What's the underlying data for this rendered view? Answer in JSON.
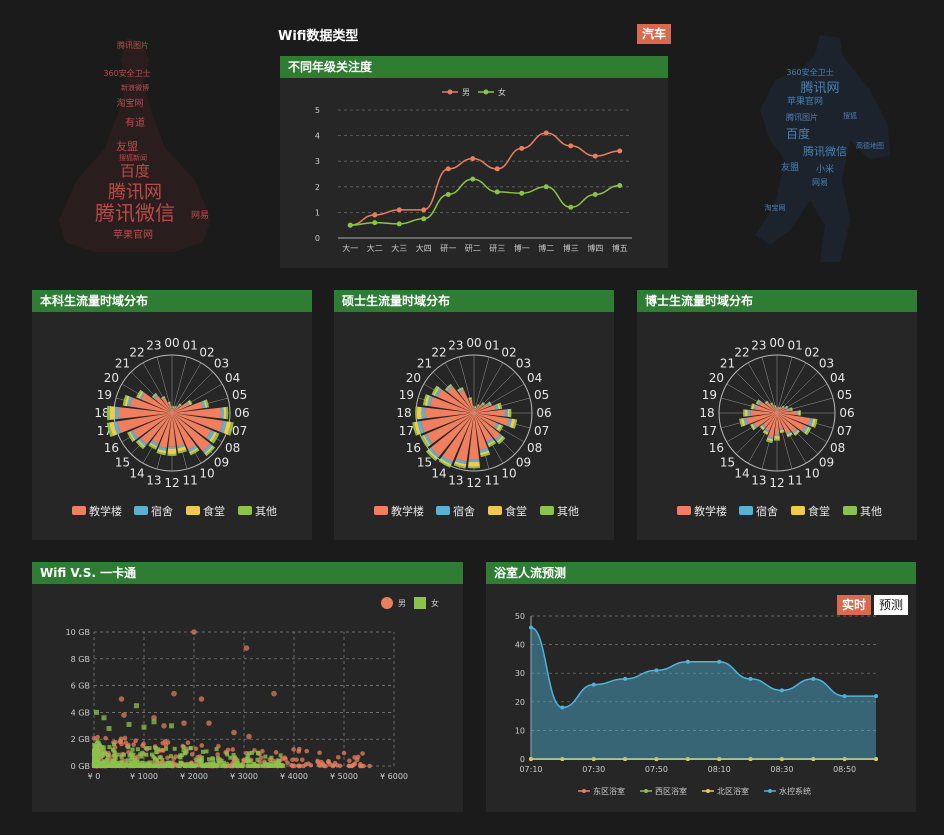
{
  "header": {
    "title": "Wifi数据类型",
    "badge": "汽车"
  },
  "wordclouds": {
    "left": {
      "color": "#c8524e",
      "words": [
        "腾讯微信",
        "腾讯网",
        "百度",
        "友盟",
        "有道",
        "淘宝网",
        "苹果官网",
        "网易",
        "360安全卫士",
        "新浪微博",
        "腾讯图片",
        "搜狐新闻"
      ]
    },
    "right": {
      "color": "#4a86c0",
      "words": [
        "腾讯网",
        "百度",
        "腾讯微信",
        "苹果官网",
        "360安全卫士",
        "腾讯图片",
        "友盟",
        "小米",
        "高德地图",
        "网易",
        "搜狐",
        "淘宝网"
      ]
    }
  },
  "grade_chart": {
    "title": "不同年级关注度",
    "chart_data": {
      "type": "line",
      "categories": [
        "大一",
        "大二",
        "大三",
        "大四",
        "研一",
        "研二",
        "研三",
        "博一",
        "博二",
        "博三",
        "博四",
        "博五"
      ],
      "series": [
        {
          "name": "男",
          "color": "#e8805e",
          "values": [
            0.5,
            0.9,
            1.1,
            1.1,
            2.7,
            3.1,
            2.7,
            3.5,
            4.1,
            3.6,
            3.2,
            3.4
          ]
        },
        {
          "name": "女",
          "color": "#8bc34a",
          "values": [
            0.5,
            0.6,
            0.55,
            0.75,
            1.7,
            2.3,
            1.8,
            1.75,
            2.0,
            1.2,
            1.7,
            2.05
          ]
        }
      ],
      "ylim": [
        0,
        5
      ],
      "yticks": [
        0,
        1,
        2,
        3,
        4,
        5
      ],
      "legend": "top-center",
      "grid": true
    }
  },
  "polar_charts": [
    {
      "title": "本科生流量时域分布",
      "chart_data": {
        "type": "bar",
        "subtype": "polar",
        "categories": [
          "00",
          "01",
          "02",
          "03",
          "04",
          "05",
          "06",
          "07",
          "08",
          "09",
          "10",
          "11",
          "12",
          "13",
          "14",
          "15",
          "16",
          "17",
          "18",
          "19",
          "20",
          "21",
          "22",
          "23"
        ],
        "series": [
          {
            "name": "教学楼",
            "color": "#ef7f5e",
            "values": [
              5,
              5,
              6,
              10,
              20,
              35,
              55,
              58,
              48,
              55,
              45,
              38,
              38,
              40,
              38,
              45,
              48,
              62,
              60,
              48,
              38,
              25,
              18,
              10
            ]
          },
          {
            "name": "宿舍",
            "color": "#5ab1d5",
            "values": [
              1,
              1,
              1,
              2,
              2,
              3,
              3,
              4,
              4,
              3,
              3,
              2,
              2,
              3,
              3,
              3,
              3,
              4,
              4,
              3,
              2,
              2,
              1,
              1
            ]
          },
          {
            "name": "食堂",
            "color": "#f2c94c",
            "values": [
              1,
              1,
              1,
              1,
              2,
              2,
              3,
              5,
              3,
              2,
              2,
              4,
              6,
              3,
              2,
              2,
              2,
              5,
              6,
              3,
              2,
              1,
              1,
              1
            ]
          },
          {
            "name": "其他",
            "color": "#8bc34a",
            "values": [
              1,
              1,
              1,
              1,
              1,
              2,
              2,
              3,
              3,
              2,
              2,
              2,
              2,
              2,
              2,
              2,
              2,
              3,
              3,
              2,
              2,
              1,
              1,
              1
            ]
          }
        ],
        "legend": "bottom"
      }
    },
    {
      "title": "硕士生流量时域分布",
      "chart_data": {
        "type": "bar",
        "subtype": "polar",
        "categories": [
          "00",
          "01",
          "02",
          "03",
          "04",
          "05",
          "06",
          "07",
          "08",
          "09",
          "10",
          "11",
          "12",
          "13",
          "14",
          "15",
          "16",
          "17",
          "18",
          "19",
          "20",
          "21",
          "22",
          "23"
        ],
        "series": [
          {
            "name": "教学楼",
            "color": "#ef7f5e",
            "values": [
              5,
              5,
              8,
              12,
              18,
              25,
              35,
              40,
              28,
              38,
              35,
              42,
              52,
              55,
              60,
              62,
              58,
              60,
              55,
              50,
              45,
              38,
              28,
              15
            ]
          },
          {
            "name": "宿舍",
            "color": "#5ab1d5",
            "values": [
              1,
              1,
              1,
              2,
              2,
              3,
              3,
              3,
              3,
              3,
              3,
              3,
              3,
              3,
              3,
              3,
              3,
              4,
              4,
              3,
              3,
              2,
              2,
              1
            ]
          },
          {
            "name": "食堂",
            "color": "#f2c94c",
            "values": [
              1,
              1,
              1,
              1,
              1,
              2,
              2,
              4,
              3,
              2,
              2,
              3,
              5,
              3,
              2,
              2,
              2,
              4,
              5,
              3,
              2,
              1,
              1,
              1
            ]
          },
          {
            "name": "其他",
            "color": "#8bc34a",
            "values": [
              1,
              1,
              1,
              1,
              1,
              2,
              2,
              2,
              2,
              2,
              2,
              2,
              2,
              2,
              2,
              2,
              2,
              2,
              2,
              2,
              2,
              1,
              1,
              1
            ]
          }
        ],
        "legend": "bottom"
      }
    },
    {
      "title": "博士生流量时域分布",
      "chart_data": {
        "type": "bar",
        "subtype": "polar",
        "categories": [
          "00",
          "01",
          "02",
          "03",
          "04",
          "05",
          "06",
          "07",
          "08",
          "09",
          "10",
          "11",
          "12",
          "13",
          "14",
          "15",
          "16",
          "17",
          "18",
          "19",
          "20",
          "21",
          "22",
          "23"
        ],
        "series": [
          {
            "name": "教学楼",
            "color": "#ef7f5e",
            "values": [
              4,
              4,
              5,
              8,
              10,
              14,
              22,
              38,
              35,
              28,
              25,
              18,
              24,
              28,
              22,
              20,
              28,
              35,
              30,
              25,
              22,
              15,
              10,
              6
            ]
          },
          {
            "name": "宿舍",
            "color": "#5ab1d5",
            "values": [
              1,
              1,
              1,
              1,
              2,
              2,
              2,
              3,
              3,
              2,
              2,
              2,
              2,
              2,
              2,
              2,
              2,
              3,
              3,
              2,
              2,
              1,
              1,
              1
            ]
          },
          {
            "name": "食堂",
            "color": "#f2c94c",
            "values": [
              1,
              1,
              1,
              1,
              1,
              1,
              2,
              3,
              2,
              2,
              2,
              2,
              3,
              2,
              2,
              2,
              2,
              3,
              3,
              2,
              1,
              1,
              1,
              1
            ]
          },
          {
            "name": "其他",
            "color": "#8bc34a",
            "values": [
              1,
              1,
              1,
              1,
              1,
              1,
              1,
              2,
              2,
              1,
              1,
              1,
              2,
              2,
              1,
              1,
              1,
              2,
              2,
              1,
              1,
              1,
              1,
              1
            ]
          }
        ],
        "legend": "bottom"
      }
    }
  ],
  "scatter_chart": {
    "title": "Wifi V.S. 一卡通",
    "chart_data": {
      "type": "scatter",
      "xlim": [
        0,
        6000
      ],
      "ylim": [
        0,
        10
      ],
      "xticks": [
        "¥ 0",
        "¥ 1000",
        "¥ 2000",
        "¥ 3000",
        "¥ 4000",
        "¥ 5000",
        "¥ 6000"
      ],
      "yticks": [
        "0 GB",
        "2 GB",
        "4 GB",
        "6 GB",
        "8 GB",
        "10 GB"
      ],
      "series": [
        {
          "name": "男",
          "color": "#e8805e",
          "shape": "circle",
          "highlights": [
            [
              2000,
              10
            ],
            [
              3050,
              8.8
            ],
            [
              1600,
              5.4
            ],
            [
              2150,
              5
            ],
            [
              3600,
              5.4
            ],
            [
              550,
              5
            ],
            [
              2300,
              3.2
            ],
            [
              1200,
              3.6
            ],
            [
              1400,
              3
            ],
            [
              2800,
              2.5
            ],
            [
              3100,
              2.2
            ],
            [
              600,
              3.8
            ],
            [
              1800,
              3.2
            ]
          ]
        },
        {
          "name": "女",
          "color": "#8bc34a",
          "shape": "square",
          "highlights": [
            [
              850,
              4.5
            ],
            [
              1200,
              3.3
            ],
            [
              50,
              4
            ],
            [
              300,
              2.8
            ],
            [
              1550,
              3
            ],
            [
              200,
              3.6
            ],
            [
              700,
              3.1
            ],
            [
              1000,
              2.9
            ]
          ]
        }
      ],
      "legend": "top-right",
      "grid": true
    }
  },
  "bath_chart": {
    "title": "浴室人流预测",
    "buttons": {
      "realtime": "实时",
      "predict": "预测"
    },
    "chart_data": {
      "type": "area",
      "x": [
        "07:10",
        "07:20",
        "07:30",
        "07:40",
        "07:50",
        "08:00",
        "08:10",
        "08:20",
        "08:30",
        "08:40",
        "08:50",
        "09:00"
      ],
      "xticks": [
        "07:10",
        "07:30",
        "07:50",
        "08:10",
        "08:30",
        "08:50"
      ],
      "ylim": [
        0,
        50
      ],
      "yticks": [
        0,
        10,
        20,
        30,
        40,
        50
      ],
      "series": [
        {
          "name": "东区浴室",
          "color": "#e8805e",
          "values": [
            0,
            0,
            0,
            0,
            0,
            0,
            0,
            0,
            0,
            0,
            0,
            0
          ]
        },
        {
          "name": "西区浴室",
          "color": "#8bc34a",
          "values": [
            0,
            0,
            0,
            0,
            0,
            0,
            0,
            0,
            0,
            0,
            0,
            0
          ]
        },
        {
          "name": "北区浴室",
          "color": "#f2c94c",
          "values": [
            0,
            0,
            0,
            0,
            0,
            0,
            0,
            0,
            0,
            0,
            0,
            0
          ]
        },
        {
          "name": "水控系统",
          "color": "#4fb3d9",
          "values": [
            46,
            18,
            26,
            28,
            31,
            34,
            34,
            28,
            24,
            28,
            22,
            22
          ]
        }
      ],
      "legend": "bottom",
      "grid": true
    }
  }
}
